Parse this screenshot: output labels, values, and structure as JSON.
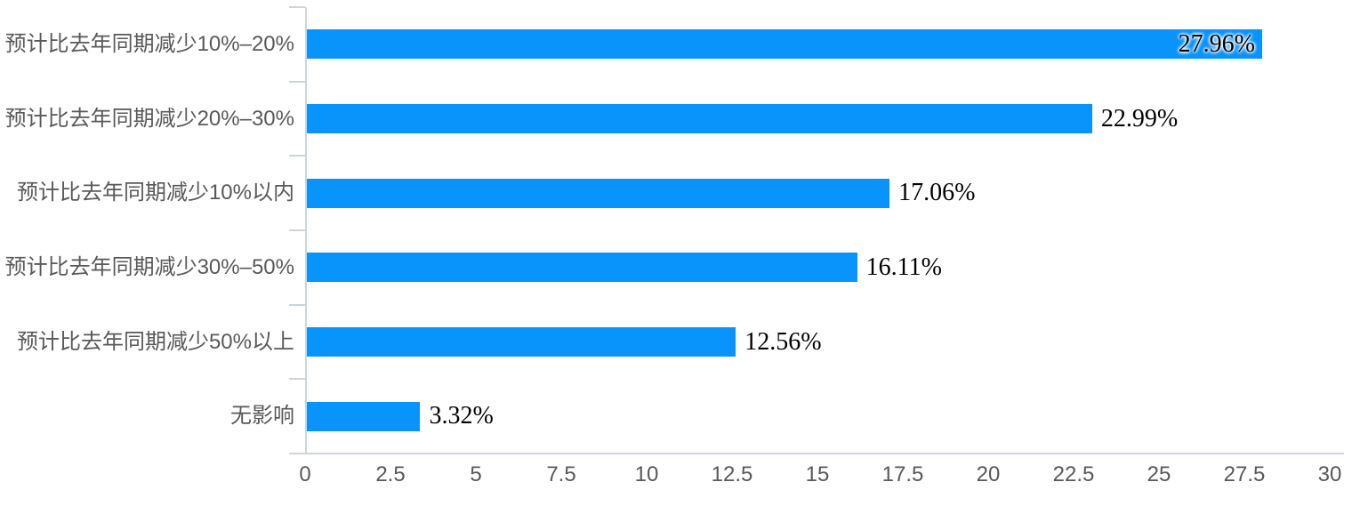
{
  "chart_data": {
    "type": "bar",
    "orientation": "horizontal",
    "title": "",
    "xlabel": "",
    "ylabel": "",
    "xlim": [
      0,
      30
    ],
    "grid": false,
    "legend": false,
    "categories": [
      "预计比去年同期减少10%–20%",
      "预计比去年同期减少20%–30%",
      "预计比去年同期减少10%以内",
      "预计比去年同期减少30%–50%",
      "预计比去年同期减少50%以上",
      "无影响"
    ],
    "values": [
      27.96,
      22.99,
      17.06,
      16.11,
      12.56,
      3.32
    ],
    "value_labels": [
      "27.96%",
      "22.99%",
      "17.06%",
      "16.11%",
      "12.56%",
      "3.32%"
    ],
    "x_tick_values": [
      0,
      2.5,
      5,
      7.5,
      10,
      12.5,
      15,
      17.5,
      20,
      22.5,
      25,
      27.5,
      30
    ],
    "x_tick_labels": [
      "0",
      "2.5",
      "5",
      "7.5",
      "10",
      "12.5",
      "15",
      "17.5",
      "20",
      "22.5",
      "25",
      "27.5",
      "30"
    ],
    "colors": {
      "bar": "#0994fb",
      "axis": "#ccd5de",
      "category_text": "#595959",
      "tick_text": "#595959",
      "value_text": "#000000"
    }
  }
}
